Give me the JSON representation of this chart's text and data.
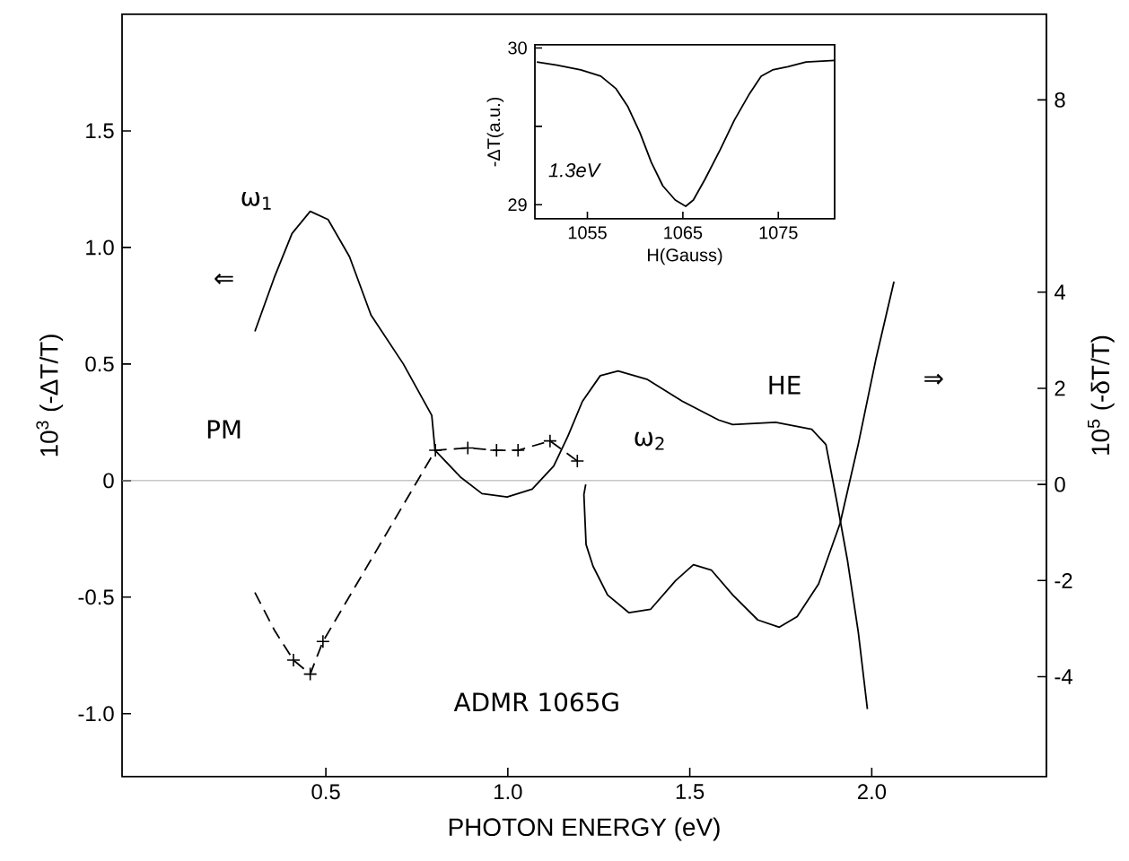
{
  "chart_data": [
    {
      "type": "line",
      "xlabel": "PHOTON ENERGY (eV)",
      "ylabel": "10$^{3}$ (-ΔT/T)",
      "y2label": "10$^{5}$ (-δT/T)",
      "xlim": [
        -0.06,
        2.48
      ],
      "ylim": [
        -1.27,
        2.0
      ],
      "y2lim": [
        -6.08,
        9.78
      ],
      "xticks": [
        0.5,
        {
          "value": 1,
          "label": "1.0"
        },
        1.5,
        {
          "value": 2,
          "label": "2.0"
        }
      ],
      "yticks": [
        {
          "value": -1,
          "label": "-1.0"
        },
        -0.5,
        0,
        0.5,
        {
          "value": 1,
          "label": "1.0"
        },
        1.5
      ],
      "y2ticks": [
        -4,
        -2,
        0,
        2,
        4,
        8
      ],
      "series": [
        {
          "color": "#000000",
          "line_style": "solid",
          "marker": "none",
          "x": [
            0.305,
            0.358,
            0.407,
            0.457,
            0.506,
            0.565,
            0.624,
            0.713,
            0.791,
            0.8,
            0.87,
            0.929,
            0.998,
            1.067,
            1.126,
            1.165,
            1.205,
            1.254,
            1.303,
            1.382,
            1.48,
            1.579,
            1.618,
            1.736,
            1.835,
            1.874,
            1.904,
            1.933,
            1.963,
            1.988
          ],
          "values": [
            0.64,
            0.87,
            1.06,
            1.155,
            1.12,
            0.96,
            0.71,
            0.5,
            0.28,
            0.13,
            0.015,
            -0.056,
            -0.07,
            -0.037,
            0.062,
            0.19,
            0.34,
            0.45,
            0.47,
            0.435,
            0.34,
            0.26,
            0.24,
            0.25,
            0.22,
            0.155,
            -0.09,
            -0.34,
            -0.65,
            -0.98
          ]
        },
        {
          "color": "#000000",
          "line_style": "dashed",
          "marker": "none",
          "x": [
            0.305,
            0.358,
            0.411,
            0.457,
            0.492,
            0.801,
            0.89,
            0.969,
            1.028,
            1.116,
            1.191
          ],
          "values": [
            -0.48,
            -0.64,
            -0.77,
            -0.83,
            -0.69,
            0.13,
            0.14,
            0.13,
            0.13,
            0.17,
            0.084
          ]
        },
        {
          "type": "scatter",
          "color": "#000000",
          "marker": "cross",
          "x": [
            0.411,
            0.457,
            0.492,
            0.801,
            0.89,
            0.969,
            1.028,
            1.116,
            1.191
          ],
          "values": [
            -0.77,
            -0.83,
            -0.69,
            0.13,
            0.14,
            0.13,
            0.13,
            0.17,
            0.084
          ]
        },
        {
          "axis": "y2",
          "color": "#000000",
          "line_style": "solid",
          "marker": "none",
          "x": [
            1.214,
            1.209,
            1.215,
            1.234,
            1.274,
            1.333,
            1.392,
            1.461,
            1.51,
            1.559,
            1.618,
            1.687,
            1.746,
            1.795,
            1.854,
            1.913,
            1.963,
            2.012,
            2.061
          ],
          "values": [
            0.0,
            -0.21,
            -1.25,
            -1.7,
            -2.3,
            -2.67,
            -2.6,
            -2.0,
            -1.67,
            -1.78,
            -2.3,
            -2.82,
            -2.97,
            -2.75,
            -2.07,
            -0.81,
            0.84,
            2.63,
            4.22
          ]
        }
      ],
      "ref_lines": [
        {
          "axis": "y",
          "value": 0,
          "color": "#aaaaaa"
        }
      ],
      "annotations": [
        "ω$_{1}$",
        "ω$_{2}$",
        "PM",
        "HE",
        "⇐",
        "⇒",
        "ADMR 1065G"
      ],
      "grid": false
    },
    {
      "type": "line",
      "xlabel": "H(Gauss)",
      "ylabel": "-ΔT(a.u.)",
      "xlim": [
        1049.5,
        1080.9
      ],
      "ylim": [
        28.91,
        30.02
      ],
      "xticks": [
        1055,
        1065,
        1075
      ],
      "yticks": [
        29,
        {
          "value": 29.5,
          "label": null
        },
        30
      ],
      "series": [
        {
          "color": "#000000",
          "line_style": "solid",
          "marker": "none",
          "x": [
            1049.7,
            1051.8,
            1054.3,
            1056.4,
            1058.0,
            1059.2,
            1060.5,
            1061.7,
            1062.9,
            1064.2,
            1065.3,
            1066.1,
            1067.3,
            1068.9,
            1070.4,
            1072.0,
            1073.2,
            1074.4,
            1076.0,
            1077.9,
            1080.9
          ],
          "values": [
            29.91,
            29.89,
            29.86,
            29.82,
            29.74,
            29.63,
            29.46,
            29.27,
            29.12,
            29.03,
            28.99,
            29.03,
            29.16,
            29.35,
            29.54,
            29.71,
            29.82,
            29.86,
            29.88,
            29.91,
            29.92
          ]
        }
      ],
      "annotations": [
        "1.3eV"
      ],
      "grid": false
    }
  ]
}
